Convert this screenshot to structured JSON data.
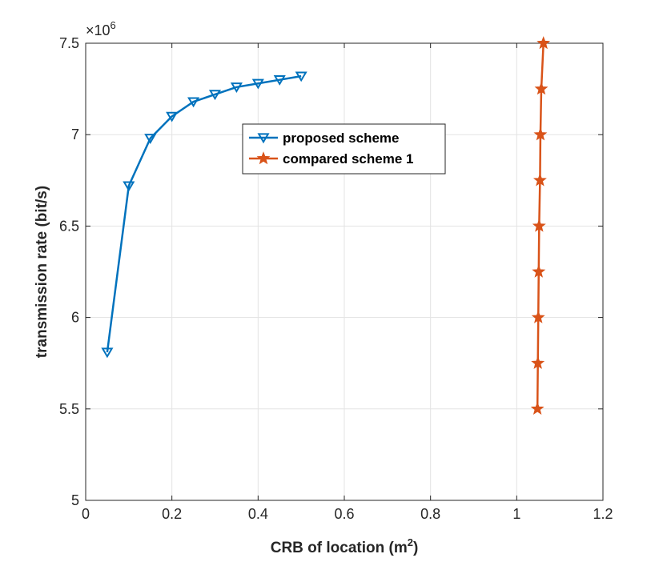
{
  "chart_data": {
    "type": "line",
    "title": "",
    "xlabel": "CRB of location (m",
    "xlabel_sup": "2",
    "xlabel_end": ")",
    "ylabel": "transmission rate (bit/s)",
    "xlim": [
      0,
      1.2
    ],
    "ylim": [
      5,
      7.5
    ],
    "xticks": [
      0,
      0.2,
      0.4,
      0.6,
      0.8,
      1,
      1.2
    ],
    "xtick_labels": [
      "0",
      "0.2",
      "0.4",
      "0.6",
      "0.8",
      "1",
      "1.2"
    ],
    "yticks": [
      5,
      5.5,
      6,
      6.5,
      7,
      7.5
    ],
    "ytick_labels": [
      "5",
      "5.5",
      "6",
      "6.5",
      "7",
      "7.5"
    ],
    "y_exponent_base": "×10",
    "y_exponent_power": "6",
    "grid": true,
    "legend_position": "upper-center",
    "series": [
      {
        "name": "proposed scheme",
        "color": "#0072BD",
        "marker": "triangle-down",
        "x": [
          0.05,
          0.1,
          0.15,
          0.2,
          0.25,
          0.3,
          0.35,
          0.4,
          0.45,
          0.5
        ],
        "y": [
          5.81,
          6.72,
          6.98,
          7.1,
          7.18,
          7.22,
          7.26,
          7.28,
          7.3,
          7.32
        ]
      },
      {
        "name": "compared scheme 1",
        "color": "#D95319",
        "marker": "star",
        "x": [
          1.048,
          1.049,
          1.05,
          1.051,
          1.052,
          1.054,
          1.055,
          1.057,
          1.062
        ],
        "y": [
          5.5,
          5.75,
          6.0,
          6.25,
          6.5,
          6.75,
          7.0,
          7.25,
          7.5
        ]
      }
    ]
  }
}
